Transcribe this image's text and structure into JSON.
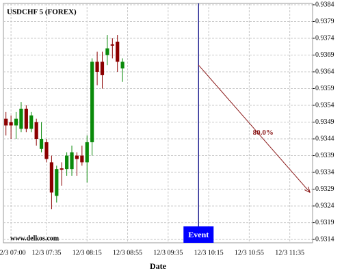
{
  "chart_data": {
    "type": "candlestick",
    "title": "USDCHF 5 (FOREX)",
    "watermark": "www.delkos.com",
    "x_label": "Date",
    "categories": [
      null,
      "12/3 07:00",
      null,
      null,
      null,
      null,
      null,
      null,
      "12/3 07:35",
      null,
      null,
      null,
      null,
      null,
      null,
      null,
      "12/3 08:15",
      null,
      null,
      null,
      null,
      null,
      null,
      null,
      "12/3 08:55",
      null,
      null,
      null,
      null,
      null,
      null,
      null,
      "12/3 09:35",
      null,
      null,
      null,
      null,
      null,
      null,
      null,
      "12/3 10:15",
      null,
      null,
      null,
      null,
      null,
      null,
      null,
      "12/3 10:55",
      null,
      null,
      null,
      null,
      null,
      null,
      null,
      "12/3 11:35",
      null,
      null,
      null,
      null
    ],
    "open": [
      0.935,
      0.9349,
      0.9348,
      0.9347,
      0.9353,
      0.9347,
      0.9349,
      0.9341,
      0.9343,
      0.9337,
      0.9327,
      0.93352,
      0.9335,
      0.9335,
      0.9339,
      0.9339,
      0.9337,
      0.9343,
      0.9367,
      0.9367,
      0.9369,
      0.93722,
      0.9373,
      0.9365,
      null,
      null,
      null,
      null,
      null,
      null,
      null,
      null,
      null,
      null,
      null,
      null,
      null,
      null,
      null,
      null,
      null,
      null,
      null,
      null,
      null,
      null,
      null,
      null,
      null,
      null,
      null,
      null,
      null,
      null,
      null,
      null,
      null,
      null,
      null,
      null,
      null
    ],
    "high": [
      0.9352,
      0.9351,
      0.9352,
      0.9355,
      0.9354,
      0.9352,
      0.935,
      0.9349,
      0.9344,
      0.9339,
      0.9336,
      0.9337,
      0.934,
      0.9342,
      0.934,
      0.9342,
      0.9345,
      0.9368,
      0.937,
      0.937,
      0.9375,
      0.9374,
      0.9375,
      0.9368,
      null,
      null,
      null,
      null,
      null,
      null,
      null,
      null,
      null,
      null,
      null,
      null,
      null,
      null,
      null,
      null,
      null,
      null,
      null,
      null,
      null,
      null,
      null,
      null,
      null,
      null,
      null,
      null,
      null,
      null,
      null,
      null,
      null,
      null,
      null,
      null,
      null
    ],
    "low": [
      0.9345,
      0.9344,
      0.9344,
      0.9346,
      0.9346,
      0.9346,
      0.9342,
      0.934,
      0.9337,
      0.9323,
      0.9325,
      0.933,
      0.9333,
      0.9333,
      0.9333,
      0.9336,
      0.9331,
      0.9339,
      0.936,
      0.9359,
      0.9366,
      0.9368,
      0.9364,
      0.9361,
      null,
      null,
      null,
      null,
      null,
      null,
      null,
      null,
      null,
      null,
      null,
      null,
      null,
      null,
      null,
      null,
      null,
      null,
      null,
      null,
      null,
      null,
      null,
      null,
      null,
      null,
      null,
      null,
      null,
      null,
      null,
      null,
      null,
      null,
      null,
      null,
      null
    ],
    "close": [
      0.9348,
      0.9348,
      0.935,
      0.9353,
      0.9347,
      0.9351,
      0.9344,
      0.9344,
      0.9338,
      0.9328,
      0.9335,
      0.93348,
      0.9339,
      0.934,
      0.9338,
      0.9337,
      0.9343,
      0.9367,
      0.9364,
      0.9363,
      0.9371,
      0.93718,
      0.9367,
      0.9367,
      null,
      null,
      null,
      null,
      null,
      null,
      null,
      null,
      null,
      null,
      null,
      null,
      null,
      null,
      null,
      null,
      null,
      null,
      null,
      null,
      null,
      null,
      null,
      null,
      null,
      null,
      null,
      null,
      null,
      null,
      null,
      null,
      null,
      null,
      null,
      null,
      null
    ],
    "up_color": "#0a8a0a",
    "down_color": "#8b0000",
    "ylim": [
      0.9313,
      0.93844
    ],
    "yticks": [
      0.9384,
      0.9379,
      0.9374,
      0.9369,
      0.9364,
      0.9359,
      0.9354,
      0.9349,
      0.9344,
      0.9339,
      0.9334,
      0.9329,
      0.9324,
      0.9319,
      0.9314
    ],
    "grid": true,
    "event": {
      "label": "Event",
      "index": 38,
      "color": "#000080",
      "box_color": "#0000ff"
    },
    "projection": {
      "label": "80.0%",
      "start_index": 38,
      "end_index": 60,
      "start": 0.9366,
      "end": 0.9328,
      "color": "#8b1a1a"
    }
  }
}
